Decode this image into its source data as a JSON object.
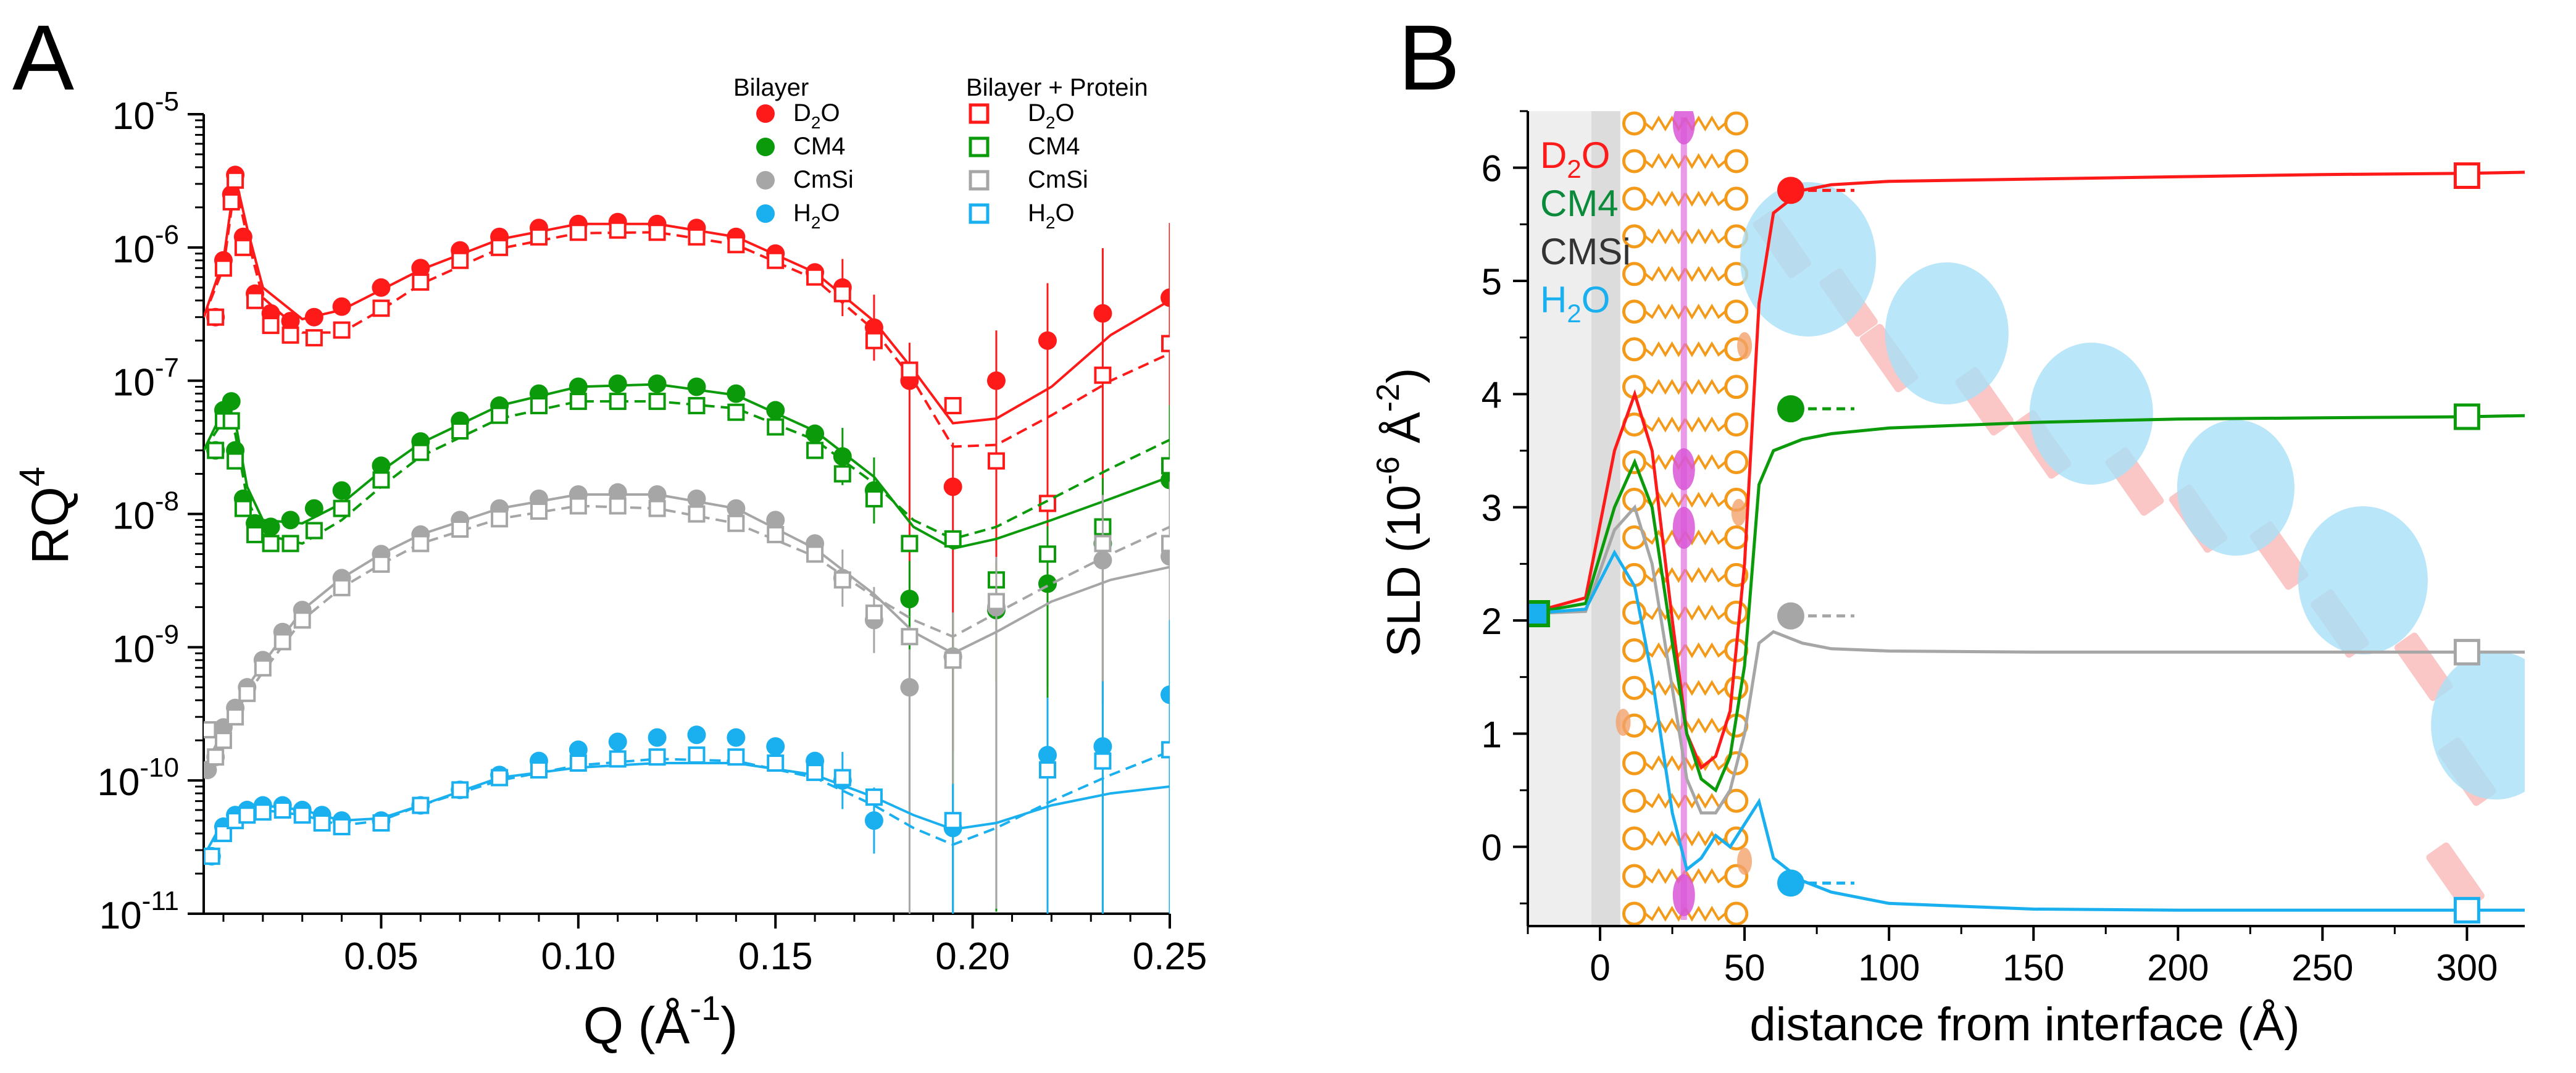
{
  "panels": {
    "a": {
      "letter": "A"
    },
    "b": {
      "letter": "B"
    }
  },
  "colors": {
    "D2O": "#ff1a1a",
    "CM4": "#0a9a0a",
    "CmSi": "#a6a6a6",
    "H2O": "#1ab0f0",
    "CMSi_label": "#333333",
    "CM4_label": "#0a8a3a"
  },
  "chart_data": [
    {
      "type": "scatter",
      "title": "",
      "ylabel": "RQ",
      "ylabel_sup": "4",
      "xlabel": "Q (Å",
      "xlabel_sup": "-1",
      "xlabel_end": ")",
      "yscale": "log",
      "xlim": [
        0.005,
        0.25
      ],
      "ylim": [
        1e-11,
        1e-05
      ],
      "xticks": [
        {
          "v": 0.05,
          "label": "0.05"
        },
        {
          "v": 0.1,
          "label": "0.10"
        },
        {
          "v": 0.15,
          "label": "0.15"
        },
        {
          "v": 0.2,
          "label": "0.20"
        },
        {
          "v": 0.25,
          "label": "0.25"
        }
      ],
      "yticks": [
        {
          "exp": -11,
          "base": "10",
          "sup": "-11"
        },
        {
          "exp": -10,
          "base": "10",
          "sup": "-10"
        },
        {
          "exp": -9,
          "base": "10",
          "sup": "-9"
        },
        {
          "exp": -8,
          "base": "10",
          "sup": "-8"
        },
        {
          "exp": -7,
          "base": "10",
          "sup": "-7"
        },
        {
          "exp": -6,
          "base": "10",
          "sup": "-6"
        },
        {
          "exp": -5,
          "base": "10",
          "sup": "-5"
        }
      ],
      "legend": {
        "group1": "Bilayer",
        "group2": "Bilayer + Protein",
        "entries": [
          {
            "key": "D2O",
            "base": "D",
            "sub": "2",
            "rest": "O"
          },
          {
            "key": "CM4",
            "base": "CM4",
            "sub": "",
            "rest": ""
          },
          {
            "key": "CmSi",
            "base": "CmSi",
            "sub": "",
            "rest": ""
          },
          {
            "key": "H2O",
            "base": "H",
            "sub": "2",
            "rest": "O"
          }
        ]
      },
      "series": [
        {
          "name": "D2O",
          "contrast": "D2O",
          "q": [
            0.008,
            0.01,
            0.012,
            0.013,
            0.015,
            0.018,
            0.022,
            0.027,
            0.033,
            0.04,
            0.05,
            0.06,
            0.07,
            0.08,
            0.09,
            0.1,
            0.11,
            0.12,
            0.13,
            0.14,
            0.15,
            0.16,
            0.167,
            0.175,
            0.184,
            0.195,
            0.206,
            0.219,
            0.233,
            0.25
          ],
          "bilayer": [
            3e-07,
            8e-07,
            2.5e-06,
            3.5e-06,
            1.2e-06,
            4.5e-07,
            3.2e-07,
            2.8e-07,
            3e-07,
            3.6e-07,
            5e-07,
            7e-07,
            9.5e-07,
            1.2e-06,
            1.4e-06,
            1.5e-06,
            1.55e-06,
            1.5e-06,
            1.4e-06,
            1.2e-06,
            9e-07,
            6.5e-07,
            5e-07,
            2.5e-07,
            1e-07,
            1.6e-08,
            1e-07,
            2e-07,
            3.2e-07,
            4.2e-07
          ],
          "protein": [
            3e-07,
            7e-07,
            2.2e-06,
            3.2e-06,
            1e-06,
            4e-07,
            2.6e-07,
            2.2e-07,
            2.1e-07,
            2.4e-07,
            3.5e-07,
            5.5e-07,
            8e-07,
            1e-06,
            1.2e-06,
            1.3e-06,
            1.35e-06,
            1.3e-06,
            1.2e-06,
            1.05e-06,
            8e-07,
            6e-07,
            4.5e-07,
            2e-07,
            1.2e-07,
            6.5e-08,
            2.5e-08,
            1.2e-08,
            1.1e-07,
            1.9e-07
          ],
          "fit_q": [
            0.005,
            0.01,
            0.013,
            0.016,
            0.02,
            0.03,
            0.04,
            0.05,
            0.06,
            0.08,
            0.1,
            0.12,
            0.14,
            0.16,
            0.175,
            0.185,
            0.195,
            0.206,
            0.22,
            0.235,
            0.25
          ],
          "fit_bilayer": [
            3e-07,
            8e-07,
            3.4e-06,
            1.4e-06,
            5e-07,
            2.9e-07,
            3.4e-07,
            4.8e-07,
            6.8e-07,
            1.15e-06,
            1.5e-06,
            1.5e-06,
            1.2e-06,
            6.5e-07,
            2.8e-07,
            1.2e-07,
            4.8e-08,
            5.2e-08,
            9e-08,
            2.2e-07,
            4e-07
          ],
          "fit_protein": [
            3e-07,
            7e-07,
            3.1e-06,
            1.2e-06,
            4.2e-07,
            2.3e-07,
            2.3e-07,
            3.4e-07,
            5.3e-07,
            9.8e-07,
            1.28e-06,
            1.3e-06,
            1.05e-06,
            5.8e-07,
            2.4e-07,
            1e-07,
            3.2e-08,
            3.3e-08,
            5.5e-08,
            1e-07,
            1.6e-07
          ]
        },
        {
          "name": "CM4",
          "contrast": "CM4",
          "q": [
            0.008,
            0.01,
            0.012,
            0.013,
            0.015,
            0.018,
            0.022,
            0.027,
            0.033,
            0.04,
            0.05,
            0.06,
            0.07,
            0.08,
            0.09,
            0.1,
            0.11,
            0.12,
            0.13,
            0.14,
            0.15,
            0.16,
            0.167,
            0.175,
            0.184,
            0.195,
            0.206,
            0.219,
            0.233,
            0.25
          ],
          "bilayer": [
            3e-08,
            6e-08,
            7e-08,
            3e-08,
            1.3e-08,
            8.5e-09,
            8e-09,
            9e-09,
            1.1e-08,
            1.5e-08,
            2.3e-08,
            3.5e-08,
            5e-08,
            6.5e-08,
            8e-08,
            9e-08,
            9.5e-08,
            9.5e-08,
            9e-08,
            8e-08,
            6e-08,
            4e-08,
            2.7e-08,
            1.5e-08,
            2.3e-09,
            8.5e-10,
            1.9e-09,
            3e-09,
            6e-09,
            1.8e-08
          ],
          "protein": [
            3e-08,
            5e-08,
            5e-08,
            2.5e-08,
            1.1e-08,
            7e-09,
            6e-09,
            6e-09,
            7.5e-09,
            1.1e-08,
            1.8e-08,
            2.9e-08,
            4.2e-08,
            5.5e-08,
            6.5e-08,
            7e-08,
            7e-08,
            7e-08,
            6.5e-08,
            5.8e-08,
            4.5e-08,
            3e-08,
            2e-08,
            1.3e-08,
            6e-09,
            6.5e-09,
            3.2e-09,
            5e-09,
            8e-09,
            2.3e-08
          ],
          "fit_q": [
            0.005,
            0.01,
            0.013,
            0.016,
            0.02,
            0.03,
            0.04,
            0.05,
            0.06,
            0.08,
            0.1,
            0.12,
            0.14,
            0.16,
            0.175,
            0.185,
            0.195,
            0.206,
            0.22,
            0.235,
            0.25
          ],
          "fit_bilayer": [
            3e-08,
            6e-08,
            5e-08,
            1.6e-08,
            9e-09,
            8.5e-09,
            1.2e-08,
            2.1e-08,
            3.4e-08,
            6.5e-08,
            9e-08,
            9.4e-08,
            7.8e-08,
            4.2e-08,
            1.9e-08,
            8e-09,
            5.5e-09,
            6.5e-09,
            9e-09,
            1.3e-08,
            1.9e-08
          ],
          "fit_protein": [
            3e-08,
            5e-08,
            4e-08,
            1.3e-08,
            7e-09,
            6e-09,
            9e-09,
            1.6e-08,
            2.7e-08,
            5.2e-08,
            7e-08,
            7e-08,
            6.2e-08,
            3.6e-08,
            1.7e-08,
            9e-09,
            6.5e-09,
            8e-09,
            1.3e-08,
            2.2e-08,
            3.6e-08
          ]
        },
        {
          "name": "CmSi",
          "contrast": "CmSi",
          "q": [
            0.006,
            0.008,
            0.01,
            0.013,
            0.016,
            0.02,
            0.025,
            0.03,
            0.04,
            0.05,
            0.06,
            0.07,
            0.08,
            0.09,
            0.1,
            0.11,
            0.12,
            0.13,
            0.14,
            0.15,
            0.16,
            0.167,
            0.175,
            0.184,
            0.195,
            0.206,
            0.233,
            0.25
          ],
          "bilayer": [
            1.2e-10,
            1.5e-10,
            2.5e-10,
            3.5e-10,
            5e-10,
            8e-10,
            1.3e-09,
            1.9e-09,
            3.3e-09,
            5e-09,
            7e-09,
            9e-09,
            1.1e-08,
            1.3e-08,
            1.4e-08,
            1.45e-08,
            1.4e-08,
            1.3e-08,
            1.1e-08,
            9e-09,
            6e-09,
            3.3e-09,
            1.6e-09,
            5e-10,
            8.5e-10,
            2e-09,
            4.5e-09,
            4.8e-09
          ],
          "protein": [
            2.4e-10,
            1.5e-10,
            2e-10,
            3e-10,
            4.5e-10,
            7e-10,
            1.1e-09,
            1.6e-09,
            2.8e-09,
            4.2e-09,
            6e-09,
            7.7e-09,
            9.2e-09,
            1.05e-08,
            1.15e-08,
            1.15e-08,
            1.1e-08,
            1e-08,
            8.5e-09,
            7e-09,
            5e-09,
            3.2e-09,
            1.8e-09,
            1.2e-09,
            8e-10,
            2.2e-09,
            6e-09,
            6e-09
          ],
          "fit_q": [
            0.005,
            0.01,
            0.015,
            0.02,
            0.03,
            0.04,
            0.05,
            0.06,
            0.08,
            0.1,
            0.12,
            0.14,
            0.16,
            0.175,
            0.185,
            0.195,
            0.206,
            0.22,
            0.235,
            0.25
          ],
          "fit_bilayer": [
            1.2e-10,
            2.4e-10,
            4.5e-10,
            7.5e-10,
            1.9e-09,
            3.3e-09,
            5e-09,
            7e-09,
            1.1e-08,
            1.4e-08,
            1.4e-08,
            1.1e-08,
            5.5e-09,
            2.5e-09,
            1.3e-09,
            9e-10,
            1.3e-09,
            2.2e-09,
            3.2e-09,
            4e-09
          ],
          "fit_protein": [
            1.2e-10,
            2e-10,
            4e-10,
            6.5e-10,
            1.6e-09,
            2.8e-09,
            4.2e-09,
            6e-09,
            9.2e-09,
            1.15e-08,
            1.1e-08,
            8.5e-09,
            4.8e-09,
            2.4e-09,
            1.6e-09,
            1.2e-09,
            1.8e-09,
            3e-09,
            5e-09,
            8e-09
          ]
        },
        {
          "name": "H2O",
          "contrast": "H2O",
          "q": [
            0.007,
            0.01,
            0.013,
            0.016,
            0.02,
            0.025,
            0.03,
            0.035,
            0.04,
            0.05,
            0.06,
            0.07,
            0.08,
            0.09,
            0.1,
            0.11,
            0.12,
            0.13,
            0.14,
            0.15,
            0.16,
            0.167,
            0.175,
            0.195,
            0.219,
            0.233,
            0.25
          ],
          "bilayer": [
            2.7e-11,
            4.5e-11,
            5.5e-11,
            6e-11,
            6.5e-11,
            6.5e-11,
            6e-11,
            5.5e-11,
            5e-11,
            5e-11,
            6.5e-11,
            8.5e-11,
            1.1e-10,
            1.4e-10,
            1.7e-10,
            1.95e-10,
            2.1e-10,
            2.2e-10,
            2.1e-10,
            1.8e-10,
            1.4e-10,
            1e-10,
            5e-11,
            4.4e-11,
            1.55e-10,
            1.8e-10,
            4.4e-10
          ],
          "protein": [
            2.7e-11,
            4e-11,
            5e-11,
            5.5e-11,
            5.8e-11,
            6e-11,
            5.5e-11,
            4.8e-11,
            4.5e-11,
            4.8e-11,
            6.5e-11,
            8.5e-11,
            1.05e-10,
            1.2e-10,
            1.35e-10,
            1.45e-10,
            1.5e-10,
            1.55e-10,
            1.5e-10,
            1.35e-10,
            1.15e-10,
            1.05e-10,
            7.5e-11,
            5e-11,
            1.2e-10,
            1.4e-10,
            1.7e-10
          ],
          "fit_q": [
            0.005,
            0.01,
            0.015,
            0.02,
            0.03,
            0.04,
            0.05,
            0.06,
            0.08,
            0.1,
            0.12,
            0.14,
            0.16,
            0.175,
            0.185,
            0.195,
            0.206,
            0.22,
            0.235,
            0.25
          ],
          "fit_bilayer": [
            2.7e-11,
            5e-11,
            6e-11,
            6.5e-11,
            6e-11,
            5e-11,
            5.2e-11,
            6.5e-11,
            1.05e-10,
            1.25e-10,
            1.35e-10,
            1.35e-10,
            1.1e-10,
            7.5e-11,
            5.5e-11,
            4.3e-11,
            4.8e-11,
            6.5e-11,
            8e-11,
            9e-11
          ],
          "fit_protein": [
            2.7e-11,
            4.5e-11,
            5.5e-11,
            6e-11,
            5.5e-11,
            4.6e-11,
            5e-11,
            6.5e-11,
            1e-10,
            1.3e-10,
            1.45e-10,
            1.4e-10,
            1.05e-10,
            6.5e-11,
            4.4e-11,
            3.3e-11,
            4.4e-11,
            7e-11,
            1.1e-10,
            1.65e-10
          ]
        }
      ]
    },
    {
      "type": "line",
      "title": "",
      "ylabel": "SLD (10",
      "ylabel_sup1": "-6",
      "ylabel_mid": " Å",
      "ylabel_sup2": "-2",
      "ylabel_end": ")",
      "xlabel": "distance from interface (Å)",
      "xlim": [
        -25,
        320
      ],
      "ylim": [
        -0.7,
        6.5
      ],
      "xticks": [
        0,
        50,
        100,
        150,
        200,
        250,
        300
      ],
      "yticks": [
        0,
        1,
        2,
        3,
        4,
        5,
        6
      ],
      "labels": [
        {
          "key": "D2O",
          "base": "D",
          "sub": "2",
          "rest": "O"
        },
        {
          "key": "CM4",
          "base": "CM4",
          "sub": "",
          "rest": ""
        },
        {
          "key": "CMSi",
          "base": "CMSi",
          "sub": "",
          "rest": ""
        },
        {
          "key": "H2O",
          "base": "H",
          "sub": "2",
          "rest": "O"
        }
      ],
      "series": [
        {
          "name": "D2O",
          "x": [
            -25,
            -5,
            5,
            12,
            18,
            25,
            30,
            35,
            40,
            45,
            50,
            55,
            60,
            70,
            80,
            100,
            150,
            200,
            250,
            300,
            320
          ],
          "y": [
            2.06,
            2.2,
            3.5,
            4.0,
            3.5,
            2.0,
            1.0,
            0.7,
            0.8,
            1.2,
            2.5,
            4.8,
            5.6,
            5.8,
            5.85,
            5.88,
            5.9,
            5.92,
            5.94,
            5.95,
            5.96
          ],
          "marker_x": 66,
          "marker_y": 5.8,
          "bulk": 5.93
        },
        {
          "name": "CM4",
          "x": [
            -25,
            -5,
            5,
            12,
            18,
            25,
            30,
            35,
            40,
            45,
            50,
            55,
            60,
            70,
            80,
            100,
            150,
            200,
            250,
            300,
            320
          ],
          "y": [
            2.06,
            2.15,
            3.0,
            3.4,
            3.0,
            1.8,
            1.0,
            0.6,
            0.5,
            0.8,
            1.6,
            3.2,
            3.5,
            3.6,
            3.65,
            3.7,
            3.75,
            3.78,
            3.79,
            3.8,
            3.81
          ],
          "marker_x": 66,
          "marker_y": 3.87,
          "bulk": 3.8
        },
        {
          "name": "CMSi",
          "x": [
            -25,
            -5,
            5,
            12,
            18,
            25,
            30,
            35,
            40,
            45,
            50,
            55,
            60,
            70,
            80,
            100,
            150,
            200,
            250,
            300,
            320
          ],
          "y": [
            2.06,
            2.08,
            2.8,
            3.0,
            2.5,
            1.4,
            0.6,
            0.3,
            0.3,
            0.5,
            1.0,
            1.8,
            1.9,
            1.8,
            1.75,
            1.73,
            1.72,
            1.72,
            1.72,
            1.72,
            1.72
          ],
          "marker_x": 66,
          "marker_y": 2.04,
          "bulk": 1.72
        },
        {
          "name": "H2O",
          "x": [
            -25,
            -5,
            5,
            12,
            18,
            25,
            30,
            35,
            40,
            45,
            50,
            55,
            60,
            70,
            80,
            100,
            150,
            200,
            250,
            300,
            320
          ],
          "y": [
            2.06,
            2.1,
            2.6,
            2.3,
            1.5,
            0.3,
            -0.2,
            -0.1,
            0.1,
            0.0,
            0.2,
            0.4,
            -0.1,
            -0.3,
            -0.4,
            -0.5,
            -0.55,
            -0.56,
            -0.56,
            -0.56,
            -0.56
          ],
          "marker_x": 66,
          "marker_y": -0.32,
          "bulk": -0.56
        }
      ],
      "substrate_marker": {
        "x": -22,
        "y": 2.06
      }
    }
  ]
}
